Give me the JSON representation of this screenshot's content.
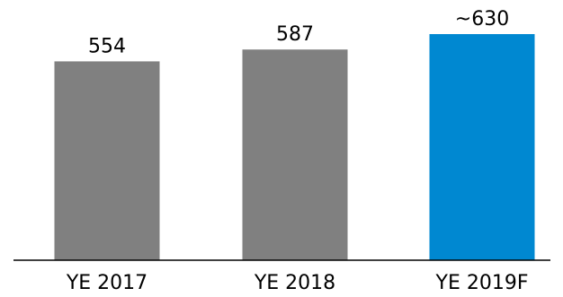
{
  "chart_data": {
    "type": "bar",
    "categories": [
      "YE 2017",
      "YE 2018",
      "YE 2019F"
    ],
    "values": [
      554,
      587,
      630
    ],
    "data_labels": [
      "554",
      "587",
      "~630"
    ],
    "bar_colors": [
      "#808080",
      "#808080",
      "#0088D1"
    ],
    "title": "",
    "xlabel": "",
    "ylabel": "",
    "y_axis_visible": false,
    "ylim": [
      0,
      630
    ],
    "grid": false,
    "legend": "none"
  },
  "colors": {
    "actual": "#808080",
    "forecast": "#0088D1",
    "axis": "#000000"
  }
}
